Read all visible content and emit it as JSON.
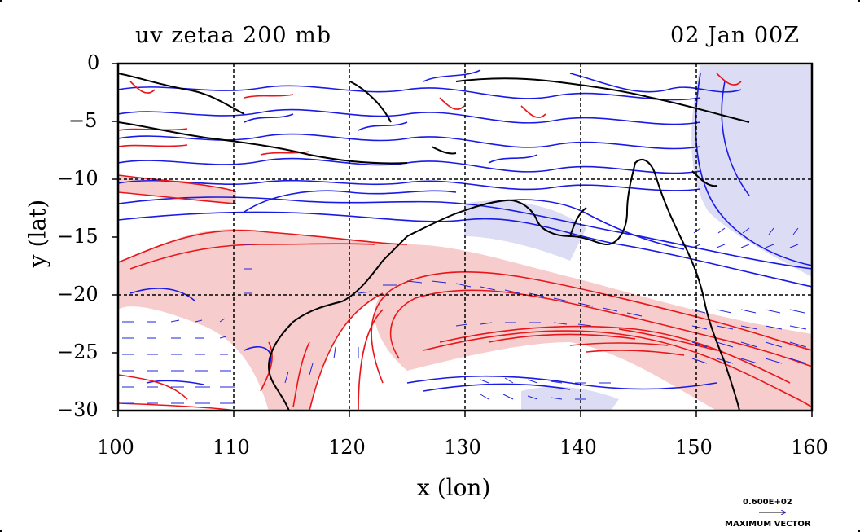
{
  "title": {
    "left": "uv zetaa 200 mb",
    "right": "02 Jan 00Z"
  },
  "axes": {
    "xlabel": "x (lon)",
    "ylabel": "y (lat)",
    "x_ticks": [
      "100",
      "110",
      "120",
      "130",
      "140",
      "150",
      "160"
    ],
    "y_ticks": [
      "0",
      "−5",
      "−10",
      "−15",
      "−20",
      "−25",
      "−30"
    ]
  },
  "vector_legend": {
    "value": "0.600E+02",
    "caption": "MAXIMUM VECTOR"
  },
  "colors": {
    "positive": "#e8161a",
    "negative": "#1a1ae6",
    "positive_fill": "#f7cccc",
    "negative_fill": "#dcdcf5",
    "coast": "#000000",
    "vectors": "#2222dd"
  },
  "map_extent": {
    "lon": [
      100,
      160
    ],
    "lat": [
      -30,
      0
    ]
  },
  "icons": {
    "vector_arrow": "arrow-right-icon"
  }
}
